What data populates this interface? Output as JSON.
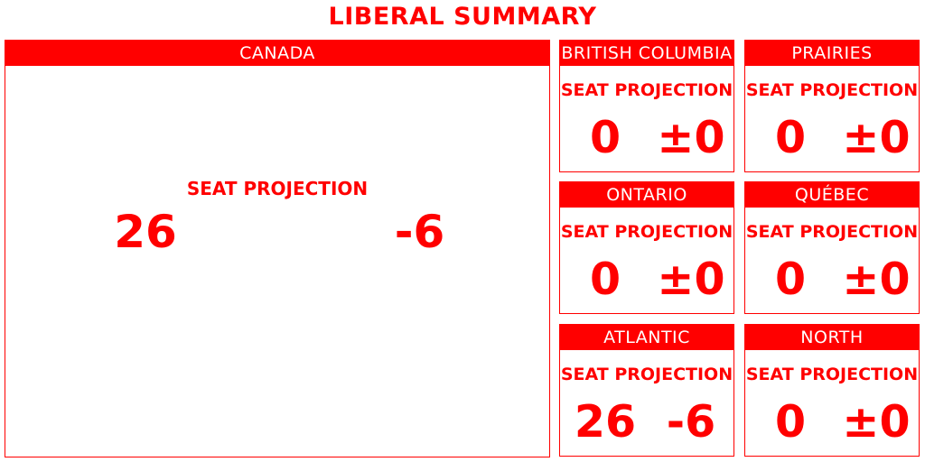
{
  "title": "LIBERAL SUMMARY",
  "accent_color": "#ff0000",
  "canada": {
    "name": "CANADA",
    "label": "SEAT PROJECTION",
    "seats": "26",
    "change": "-6"
  },
  "regions": [
    {
      "name": "BRITISH COLUMBIA",
      "label": "SEAT PROJECTION",
      "seats": "0",
      "change": "±0"
    },
    {
      "name": "PRAIRIES",
      "label": "SEAT PROJECTION",
      "seats": "0",
      "change": "±0"
    },
    {
      "name": "ONTARIO",
      "label": "SEAT PROJECTION",
      "seats": "0",
      "change": "±0"
    },
    {
      "name": "QUÉBEC",
      "label": "SEAT PROJECTION",
      "seats": "0",
      "change": "±0"
    },
    {
      "name": "ATLANTIC",
      "label": "SEAT PROJECTION",
      "seats": "26",
      "change": "-6"
    },
    {
      "name": "NORTH",
      "label": "SEAT PROJECTION",
      "seats": "0",
      "change": "±0"
    }
  ]
}
